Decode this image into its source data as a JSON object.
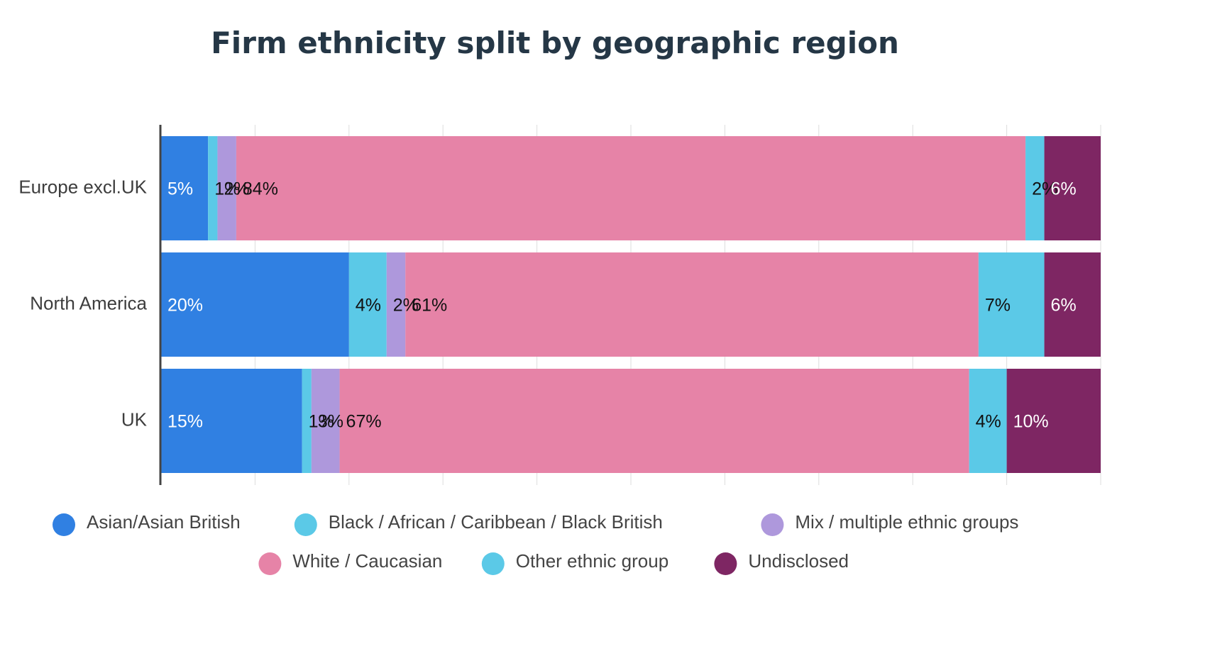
{
  "chart_data": {
    "type": "bar",
    "orientation": "horizontal",
    "stacked": true,
    "title": "Firm ethnicity split by geographic region",
    "xlabel": "",
    "ylabel": "",
    "xlim": [
      0,
      100
    ],
    "grid": true,
    "legend_position": "bottom",
    "categories": [
      "Europe excl.UK",
      "North America",
      "UK"
    ],
    "series": [
      {
        "name": "Asian/Asian British",
        "color": "#3080e2",
        "label_color": "#ffffff",
        "values": [
          5,
          20,
          15
        ],
        "labels": [
          "5%",
          "20%",
          "15%"
        ]
      },
      {
        "name": "Black / African / Caribbean / Black British",
        "color": "#5bc9e7",
        "label_color": "#111111",
        "values": [
          1,
          4,
          1
        ],
        "labels": [
          "1%",
          "4%",
          "1%"
        ]
      },
      {
        "name": "Mix / multiple ethnic groups",
        "color": "#ae98dc",
        "label_color": "#111111",
        "values": [
          2,
          2,
          3
        ],
        "labels": [
          "2%",
          "2%",
          "3%"
        ]
      },
      {
        "name": "White / Caucasian",
        "color": "#e683a7",
        "label_color": "#111111",
        "values": [
          84,
          61,
          67
        ],
        "labels": [
          "84%",
          "61%",
          "67%"
        ]
      },
      {
        "name": "Other ethnic group",
        "color": "#5bc9e7",
        "label_color": "#111111",
        "values": [
          2,
          7,
          4
        ],
        "labels": [
          "2%",
          "7%",
          "4%"
        ]
      },
      {
        "name": "Undisclosed",
        "color": "#7e2663",
        "label_color": "#ffffff",
        "values": [
          6,
          6,
          10
        ],
        "labels": [
          "6%",
          "6%",
          "10%"
        ]
      }
    ]
  }
}
